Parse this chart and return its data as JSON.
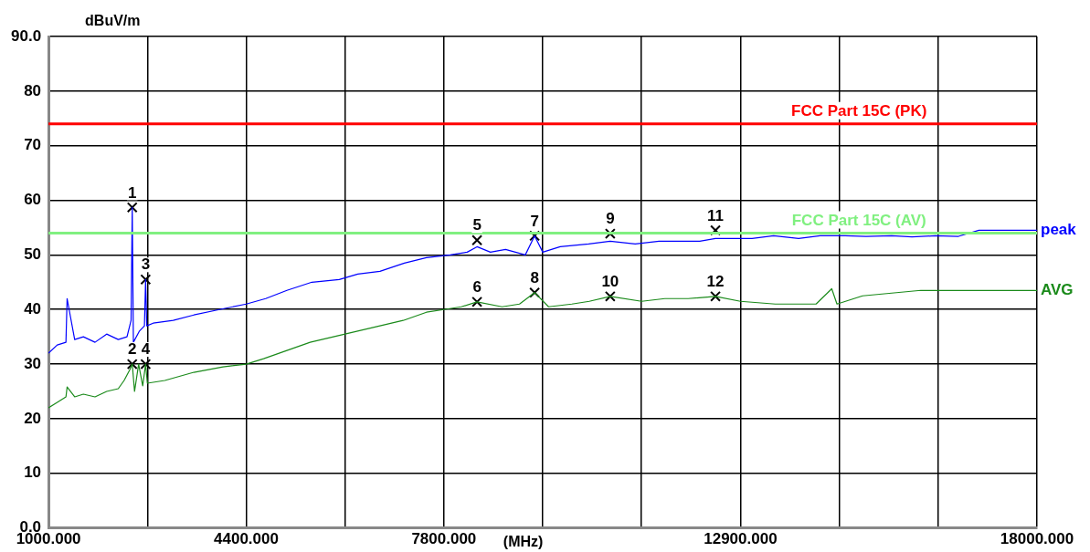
{
  "chart_data": {
    "type": "line",
    "xlabel": "(MHz)",
    "ylabel": "dBuV/m",
    "xlim": [
      1000,
      18000
    ],
    "ylim": [
      0,
      90
    ],
    "xticks": [
      {
        "value": 1000,
        "label": "1000.000"
      },
      {
        "value": 2700,
        "label": null
      },
      {
        "value": 4400,
        "label": "4400.000"
      },
      {
        "value": 6100,
        "label": null
      },
      {
        "value": 7800,
        "label": "7800.000"
      },
      {
        "value": 9500,
        "label": null
      },
      {
        "value": 11200,
        "label": null
      },
      {
        "value": 12900,
        "label": "12900.000"
      },
      {
        "value": 14600,
        "label": null
      },
      {
        "value": 16300,
        "label": null
      },
      {
        "value": 18000,
        "label": "18000.000"
      }
    ],
    "yticks": [
      {
        "value": 0,
        "label": "0.0"
      },
      10,
      20,
      30,
      40,
      50,
      60,
      70,
      80,
      {
        "value": 90,
        "label": "90.0"
      }
    ],
    "grid": true,
    "legend": false,
    "series": [
      {
        "name": "peak",
        "color": "#0000ff",
        "marker": "none",
        "x": [
          1000,
          1150,
          1300,
          1320,
          1450,
          1600,
          1800,
          2000,
          2200,
          2350,
          2420,
          2440,
          2460,
          2560,
          2650,
          2670,
          2690,
          2800,
          3145,
          3500,
          3940,
          4400,
          4735,
          5100,
          5530,
          6000,
          6320,
          6700,
          7120,
          7500,
          7910,
          8200,
          8370,
          8600,
          8860,
          9200,
          9360,
          9500,
          9800,
          10290,
          10660,
          11090,
          11500,
          11880,
          12200,
          12470,
          12680,
          13100,
          13470,
          13900,
          14270,
          14700,
          15060,
          15500,
          15850,
          16250,
          16650,
          17000,
          17440,
          17800,
          18000
        ],
        "values": [
          32,
          33.5,
          34,
          42,
          34.5,
          35,
          34,
          35.5,
          34.5,
          35,
          38,
          58.7,
          34,
          36,
          37,
          45.5,
          37,
          37.5,
          38,
          39,
          40,
          41,
          42,
          43.5,
          45,
          45.5,
          46.5,
          47,
          48.5,
          49.5,
          50,
          50.5,
          51.5,
          50.5,
          51,
          50,
          53.5,
          50.5,
          51.5,
          52,
          52.5,
          52,
          52.5,
          52.5,
          52.5,
          53,
          53,
          53,
          53.5,
          53,
          53.5,
          53.5,
          53.4,
          53.5,
          53.3,
          53.5,
          53.4,
          54.5,
          54.5,
          54.5,
          54.5
        ]
      },
      {
        "name": "AVG",
        "color": "#1a8a1a",
        "marker": "none",
        "x": [
          1000,
          1150,
          1300,
          1320,
          1450,
          1600,
          1800,
          2000,
          2200,
          2300,
          2400,
          2440,
          2480,
          2550,
          2620,
          2670,
          2700,
          3000,
          3500,
          4000,
          4400,
          4700,
          5100,
          5500,
          5900,
          6300,
          6700,
          7100,
          7500,
          7800,
          8100,
          8370,
          8800,
          9100,
          9360,
          9600,
          10000,
          10300,
          10660,
          11200,
          11600,
          12000,
          12470,
          12900,
          13500,
          14200,
          14470,
          14560,
          15000,
          15500,
          16000,
          16500,
          17000,
          17500,
          18000
        ],
        "values": [
          22,
          23,
          24,
          25.8,
          24,
          24.5,
          24,
          25,
          25.5,
          27,
          29,
          30,
          25,
          30,
          26,
          30,
          26.5,
          27,
          28.5,
          29.5,
          30,
          31,
          32.5,
          34,
          35,
          36,
          37,
          38,
          39.5,
          40,
          40.5,
          41.4,
          40.5,
          41,
          43.1,
          40.5,
          41,
          41.5,
          42.4,
          41.5,
          42,
          42,
          42.4,
          41.5,
          41,
          41,
          43.8,
          41,
          42.5,
          43,
          43.5,
          43.5,
          43.5,
          43.5,
          43.5
        ]
      },
      {
        "type": "scatter",
        "color": "#000000",
        "marker": "cross",
        "x": [
          2440,
          2440,
          2670,
          2670,
          8370,
          8370,
          9360,
          9360,
          10660,
          10660,
          12470,
          12470
        ],
        "values": [
          58.7,
          30,
          45.5,
          30,
          52.7,
          41.4,
          53.5,
          43.1,
          53.9,
          42.4,
          54.5,
          42.4
        ]
      }
    ],
    "ref_lines": [
      {
        "axis": "y",
        "value": 74,
        "label": "FCC Part 15C (PK)",
        "color": "#ff0000"
      },
      {
        "axis": "y",
        "value": 54,
        "label": "FCC Part 15C (AV)",
        "color": "#80f080"
      }
    ],
    "annotations": [
      {
        "text": "1",
        "x": 2440,
        "y": 58.7
      },
      {
        "text": "2",
        "x": 2440,
        "y": 30
      },
      {
        "text": "3",
        "x": 2670,
        "y": 45.5
      },
      {
        "text": "4",
        "x": 2670,
        "y": 30
      },
      {
        "text": "5",
        "x": 8370,
        "y": 52.7
      },
      {
        "text": "6",
        "x": 8370,
        "y": 41.4
      },
      {
        "text": "7",
        "x": 9360,
        "y": 53.5
      },
      {
        "text": "8",
        "x": 9360,
        "y": 43.1
      },
      {
        "text": "9",
        "x": 10660,
        "y": 53.9
      },
      {
        "text": "10",
        "x": 10660,
        "y": 42.4
      },
      {
        "text": "11",
        "x": 12470,
        "y": 54.5
      },
      {
        "text": "12",
        "x": 12470,
        "y": 42.4
      }
    ]
  }
}
